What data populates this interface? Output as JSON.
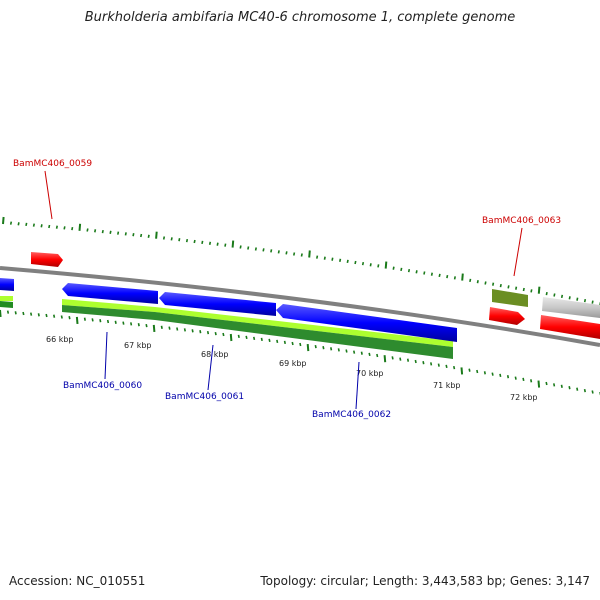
{
  "title": "Burkholderia ambifaria MC40-6 chromosome 1, complete genome",
  "footer": {
    "accession": "Accession: NC_010551",
    "stats": "Topology: circular; Length: 3,443,583 bp; Genes: 3,147"
  },
  "scale_labels": [
    "66 kbp",
    "67 kbp",
    "68 kbp",
    "69 kbp",
    "70 kbp",
    "71 kbp",
    "72 kbp"
  ],
  "gene_labels": {
    "g0059": "BamMC406_0059",
    "g0060": "BamMC406_0060",
    "g0061": "BamMC406_0061",
    "g0062": "BamMC406_0062",
    "g0063": "BamMC406_0063"
  },
  "colors": {
    "forward_cds": "#ff0000",
    "reverse_cds": "#0000ff",
    "forward_label": "#cc0000",
    "reverse_label": "#0000aa",
    "backbone": "#808080",
    "ticks": "#1a7a1a",
    "gc_olive": "#6b8e23",
    "gc_light": "#adff2f",
    "gc_dark": "#228b22",
    "gray_feature": "#c8c8c8"
  }
}
